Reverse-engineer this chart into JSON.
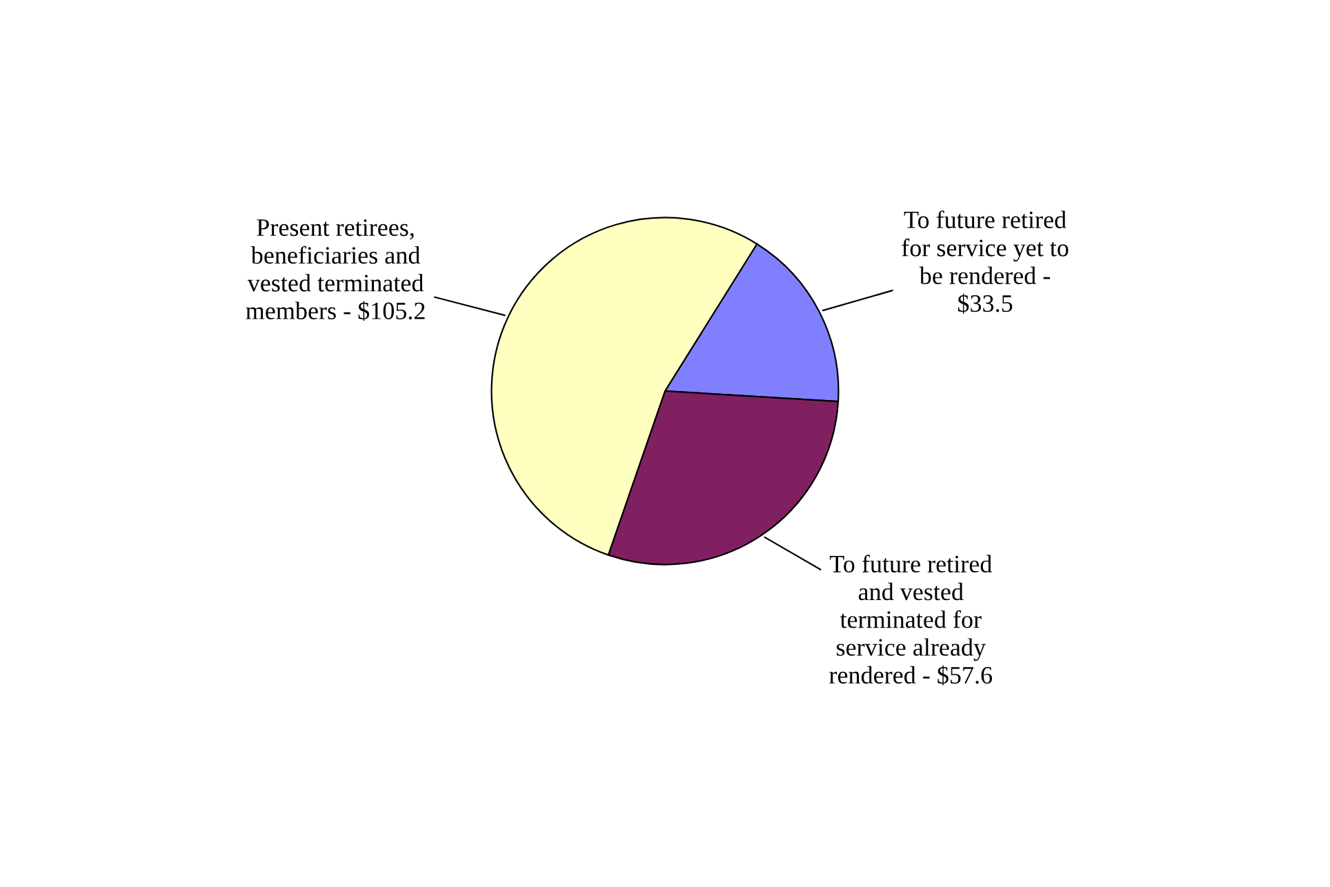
{
  "chart_data": {
    "type": "pie",
    "categories": [
      "To future retired\nfor service yet to\nbe rendered -\n$33.5",
      "To future retired\nand vested\nterminated for\nservice already\nrendered - $57.6",
      "Present retirees,\nbeneficiaries and\nvested terminated\nmembers - $105.2"
    ],
    "values": [
      33.5,
      57.6,
      105.2
    ],
    "colors": [
      "#8080ff",
      "#802060",
      "#ffffc0"
    ],
    "legend": false
  }
}
